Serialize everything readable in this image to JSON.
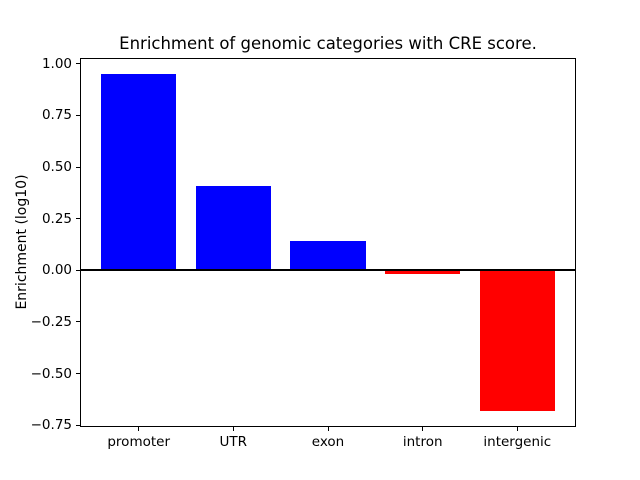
{
  "chart_data": {
    "type": "bar",
    "title": "Enrichment of genomic categories with CRE score.",
    "xlabel": "",
    "ylabel": "Enrichment (log10)",
    "categories": [
      "promoter",
      "UTR",
      "exon",
      "intron",
      "intergenic"
    ],
    "values": [
      0.95,
      0.41,
      0.14,
      -0.02,
      -0.68
    ],
    "bar_colors": [
      "#0000ff",
      "#0000ff",
      "#0000ff",
      "#ff0000",
      "#ff0000"
    ],
    "positive_color": "#0000ff",
    "negative_color": "#ff0000",
    "ylim": [
      -0.76,
      1.03
    ],
    "xlim": [
      -0.62,
      4.62
    ],
    "yticks": [
      1.0,
      0.75,
      0.5,
      0.25,
      0.0,
      -0.25,
      -0.5,
      -0.75
    ],
    "ytick_labels": [
      "1.00",
      "0.75",
      "0.50",
      "0.25",
      "0.00",
      "−0.25",
      "−0.50",
      "−0.75"
    ],
    "bar_width_fraction": 0.8,
    "zero_line": true,
    "grid": false,
    "legend": false,
    "background_color": "#ffffff",
    "text_color": "#000000"
  }
}
